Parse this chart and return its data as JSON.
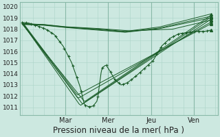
{
  "background_color": "#cce8e0",
  "plot_bg_color": "#cce8e0",
  "grid_minor_color": "#aad4c8",
  "grid_major_color": "#88b8a8",
  "line_color": "#1a5c28",
  "xlabel": "Pression niveau de la mer( hPa )",
  "xlabel_fontsize": 8.5,
  "ytick_values": [
    1011,
    1012,
    1013,
    1014,
    1015,
    1016,
    1017,
    1018,
    1019,
    1020
  ],
  "ylim": [
    1010.3,
    1020.4
  ],
  "xtick_labels": [
    "Mar",
    "Mer",
    "Jeu",
    "Ven"
  ],
  "xtick_positions": [
    1,
    2,
    3,
    4
  ],
  "xlim": [
    -0.05,
    4.55
  ],
  "x_start": 0.0,
  "x_end": 4.4
}
